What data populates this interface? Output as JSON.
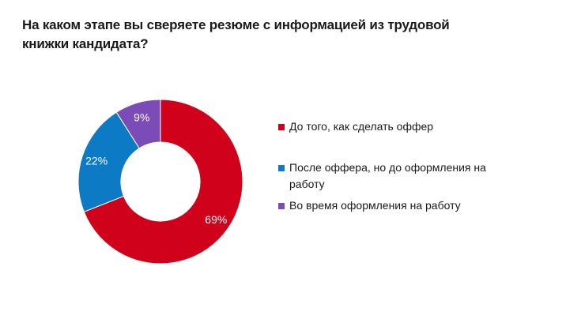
{
  "chart_data": {
    "type": "pie",
    "donut": true,
    "title": "На каком этапе вы сверяете резюме с информацией из трудовой книжки кандидата?",
    "series": [
      {
        "name": "До того, как сделать оффер",
        "value": 69,
        "label": "69%",
        "color": "#d0021b"
      },
      {
        "name": "После оффера, но до оформления на работу",
        "value": 22,
        "label": "22%",
        "color": "#0c7ac4"
      },
      {
        "name": "Во время оформления на работу",
        "value": 9,
        "label": "9%",
        "color": "#7b4bb8"
      }
    ],
    "legend_position": "right"
  }
}
